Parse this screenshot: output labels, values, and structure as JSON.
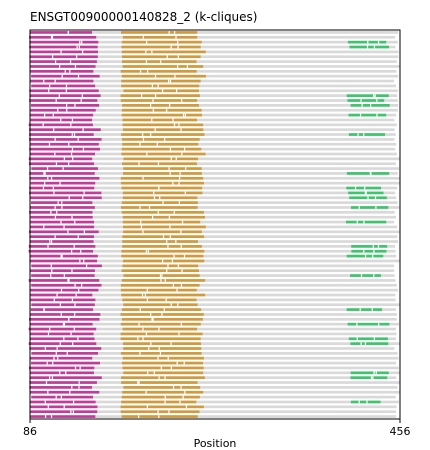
{
  "chart_data": {
    "type": "alignment",
    "title": "ENSGT00900000140828_2 (k-cliques)",
    "xlabel": "Position",
    "xlim": [
      86,
      456
    ],
    "x_ticks": [
      "86",
      "456"
    ],
    "row_count": 80,
    "grid": false,
    "colors": {
      "magenta": "#c13c9a",
      "gold": "#d19a3c",
      "green": "#3ec46d",
      "gray": "#d9d9d9",
      "frame": "#000000"
    },
    "column_blocks": [
      {
        "color": "magenta",
        "start": 86,
        "end": 158
      },
      {
        "color": "gold",
        "start": 178,
        "end": 262
      },
      {
        "color": "gray",
        "start": 262,
        "end": 402
      },
      {
        "color": "green",
        "start": 402,
        "end": 446
      }
    ],
    "background_color": "gray"
  }
}
